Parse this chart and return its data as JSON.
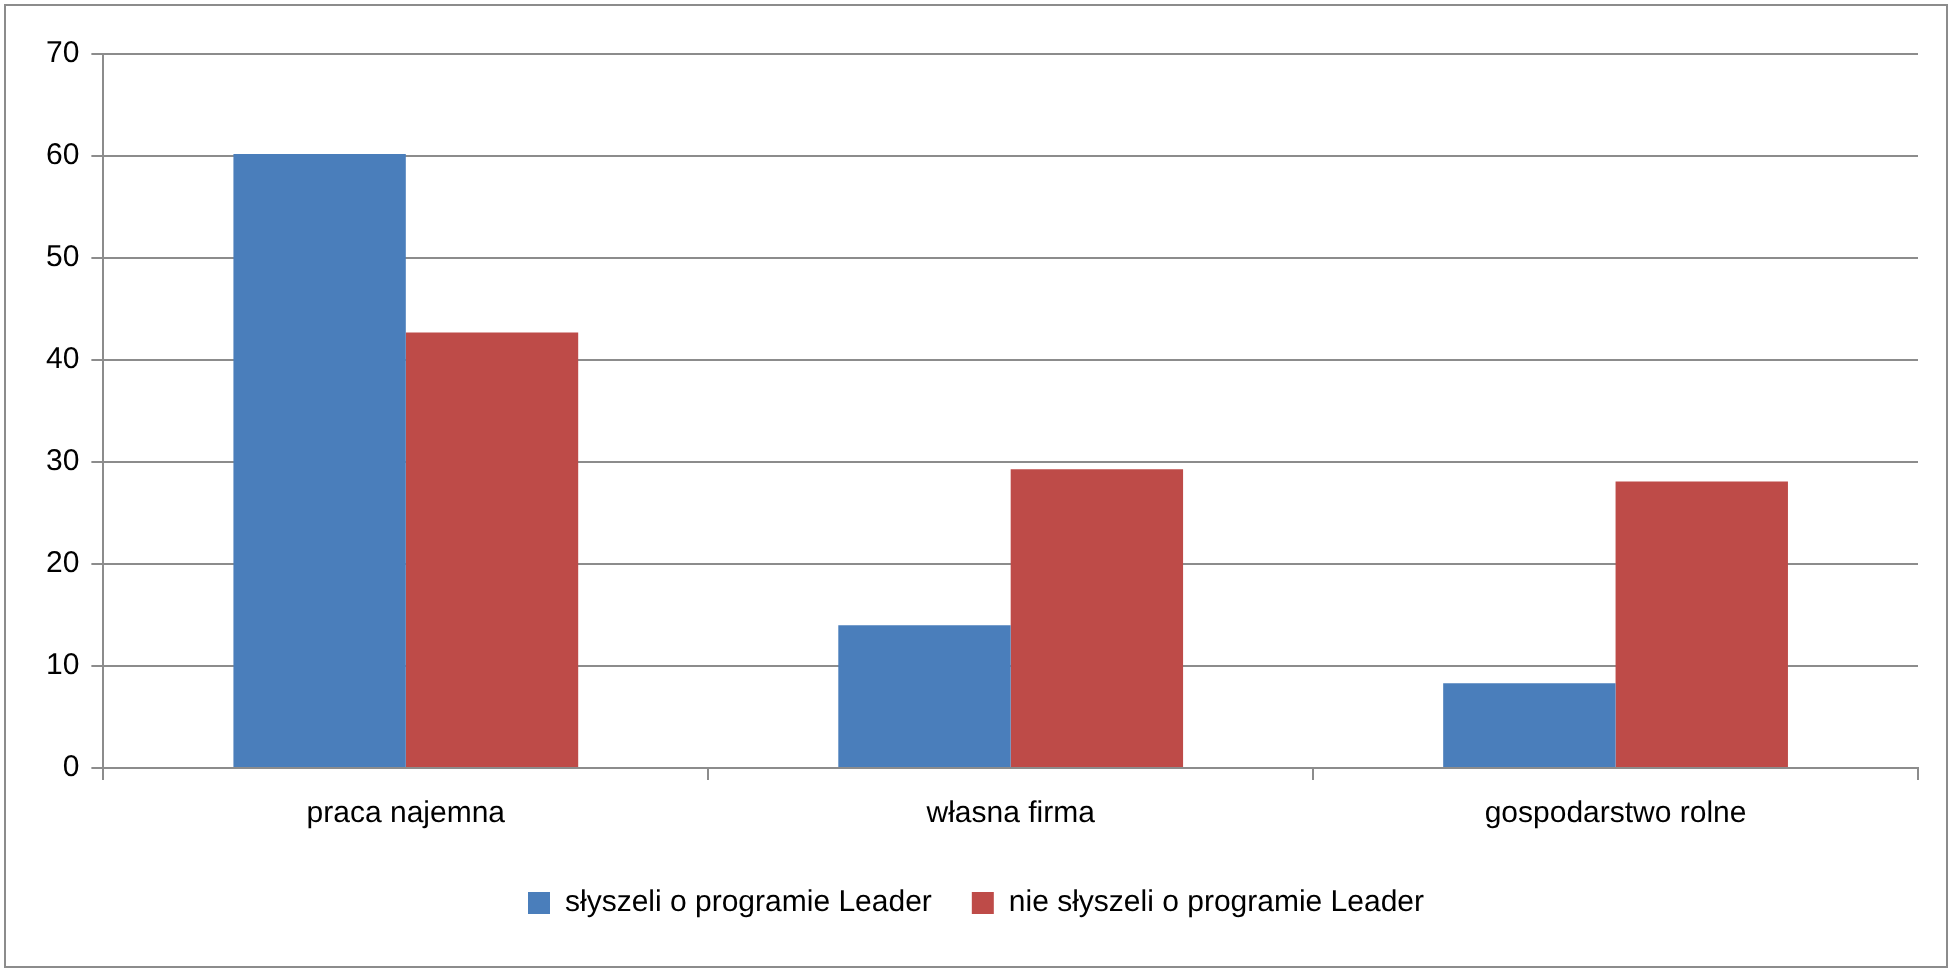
{
  "chart_data": {
    "type": "bar",
    "categories": [
      "praca najemna",
      "własna firma",
      "gospodarstwo rolne"
    ],
    "series": [
      {
        "name": "słyszeli o programie Leader",
        "color": "#4a7ebb",
        "values": [
          60.2,
          14.0,
          8.3
        ]
      },
      {
        "name": "nie słyszeli o programie Leader",
        "color": "#be4b48",
        "values": [
          42.7,
          29.3,
          28.1
        ]
      }
    ],
    "ylim": [
      0,
      70
    ],
    "yticks": [
      0,
      10,
      20,
      30,
      40,
      50,
      60,
      70
    ],
    "grid": "y",
    "legend": "bottom"
  }
}
